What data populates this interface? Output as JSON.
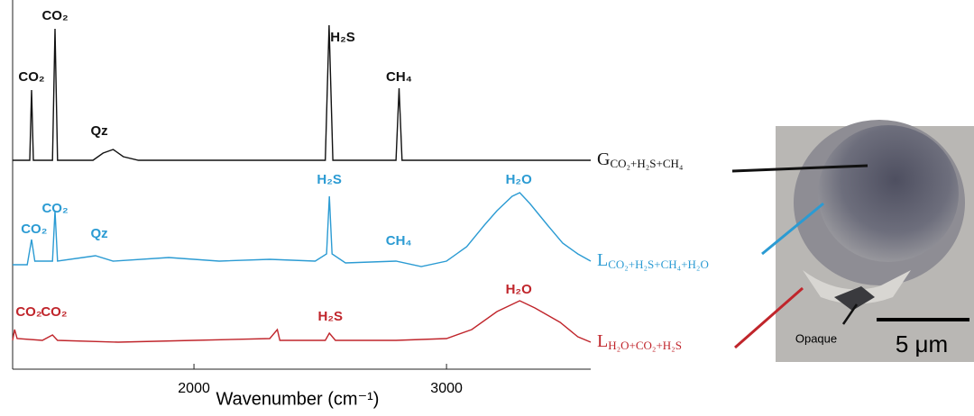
{
  "chart_data": {
    "type": "line",
    "x_label": "Wavenumber (cm⁻¹)",
    "xlim": [
      1282,
      3571
    ],
    "xticks": [
      2000,
      3000
    ],
    "ylim": [
      0,
      100
    ],
    "series": [
      {
        "name": "G",
        "name_sub": "CO₂+H₂S+CH₄",
        "color": "#111111",
        "x": [
          1282,
          1330,
          1350,
          1357,
          1364,
          1440,
          1450,
          1460,
          1600,
          1640,
          1680,
          1720,
          1780,
          2000,
          2300,
          2520,
          2535,
          2550,
          2800,
          2812,
          2824,
          3000,
          3300,
          3571
        ],
        "values": [
          58,
          58,
          58,
          77.5,
          58,
          58,
          94.5,
          58,
          58,
          60,
          61,
          59,
          58,
          58,
          58,
          58,
          95.5,
          58,
          58,
          78,
          58,
          58,
          58,
          58
        ],
        "peaks": [
          {
            "text": "CO₂",
            "x": 1357,
            "y": 81
          },
          {
            "text": "CO₂",
            "x": 1450,
            "y": 98
          },
          {
            "text": "Qz",
            "x": 1625,
            "y": 66
          },
          {
            "text": "H₂S",
            "x": 2589,
            "y": 92
          },
          {
            "text": "CH₄",
            "x": 2812,
            "y": 81
          }
        ]
      },
      {
        "name": "L",
        "name_sub": "CO₂+H₂S+CH₄+H₂O",
        "color": "#2b9bd3",
        "x": [
          1282,
          1340,
          1357,
          1370,
          1440,
          1450,
          1460,
          1560,
          1610,
          1680,
          1900,
          2100,
          2300,
          2480,
          2525,
          2536,
          2547,
          2600,
          2800,
          2900,
          3000,
          3080,
          3150,
          3200,
          3260,
          3290,
          3330,
          3400,
          3460,
          3520,
          3571
        ],
        "values": [
          29,
          29,
          36,
          30,
          30,
          44,
          30,
          31,
          31.5,
          30,
          31,
          30,
          30.5,
          30,
          32,
          48,
          32,
          29.5,
          30,
          28.5,
          30,
          34,
          40,
          44,
          48,
          49,
          46,
          40,
          35,
          32,
          30
        ],
        "peaks": [
          {
            "text": "CO₂",
            "x": 1367,
            "y": 38.75
          },
          {
            "text": "CO₂",
            "x": 1450,
            "y": 44.5
          },
          {
            "text": "Qz",
            "x": 1625,
            "y": 37.5
          },
          {
            "text": "H₂S",
            "x": 2536,
            "y": 52.5
          },
          {
            "text": "CH₄",
            "x": 2811,
            "y": 35.5
          },
          {
            "text": "H₂O",
            "x": 3286,
            "y": 52.5
          }
        ]
      },
      {
        "name": "L",
        "name_sub": "H₂O+CO₂+H₂S",
        "color": "#c0252b",
        "x": [
          1282,
          1290,
          1300,
          1400,
          1440,
          1460,
          1700,
          2000,
          2300,
          2330,
          2340,
          2520,
          2536,
          2560,
          2800,
          3000,
          3100,
          3200,
          3290,
          3350,
          3450,
          3520,
          3571
        ],
        "values": [
          8,
          11,
          8.5,
          8,
          9.5,
          8,
          7.5,
          8,
          8.5,
          11,
          8,
          8,
          10,
          8,
          8,
          8.5,
          11,
          16,
          19,
          17,
          13,
          9,
          7.5
        ],
        "peaks": [
          {
            "text": "CO₂",
            "x": 1346,
            "y": 15.75
          },
          {
            "text": "CO₂",
            "x": 1446,
            "y": 15.75
          },
          {
            "text": "H₂S",
            "x": 2540,
            "y": 14.5
          },
          {
            "text": "H₂O",
            "x": 3286,
            "y": 22
          }
        ]
      }
    ]
  },
  "image": {
    "annotation": "Opaque",
    "scale_bar": "5 μm"
  }
}
